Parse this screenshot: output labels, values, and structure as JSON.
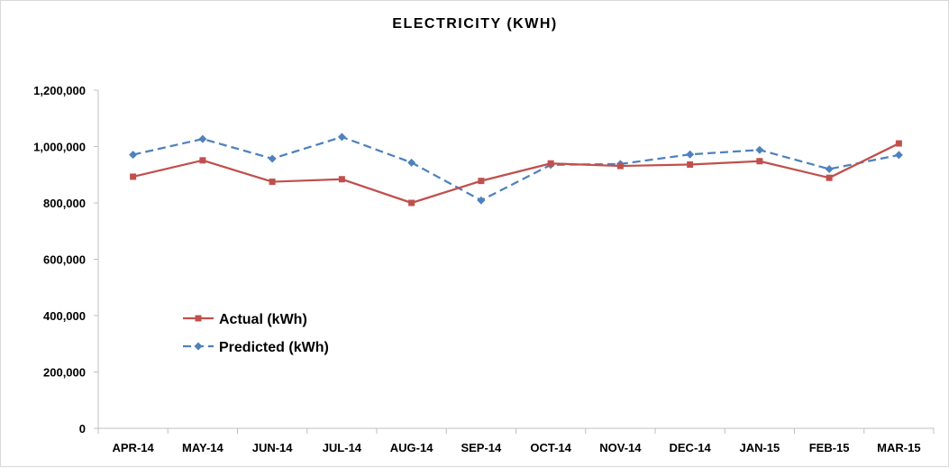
{
  "chart_data": {
    "type": "line",
    "title": "ELECTRICITY (KWH)",
    "xlabel": "",
    "ylabel": "",
    "categories": [
      "APR-14",
      "MAY-14",
      "JUN-14",
      "JUL-14",
      "AUG-14",
      "SEP-14",
      "OCT-14",
      "NOV-14",
      "DEC-14",
      "JAN-15",
      "FEB-15",
      "MAR-15"
    ],
    "ylim": [
      0,
      1200000
    ],
    "yticks": [
      0,
      200000,
      400000,
      600000,
      800000,
      1000000,
      1200000
    ],
    "ytick_labels": [
      "0",
      "200,000",
      "400,000",
      "600,000",
      "800,000",
      "1,000,000",
      "1,200,000"
    ],
    "grid": false,
    "legend_position": "lower-left",
    "series": [
      {
        "name": "Actual (kWh)",
        "color": "#c0504d",
        "marker": "square",
        "line_style": "solid",
        "values": [
          893000,
          951000,
          875000,
          884000,
          800000,
          878000,
          940000,
          931000,
          936000,
          948000,
          889000,
          1011000
        ]
      },
      {
        "name": "Predicted (kWh)",
        "color": "#4f81bd",
        "marker": "diamond",
        "line_style": "dashed",
        "values": [
          971000,
          1027000,
          957000,
          1034000,
          943000,
          809000,
          935000,
          938000,
          972000,
          988000,
          920000,
          970000
        ]
      }
    ]
  }
}
